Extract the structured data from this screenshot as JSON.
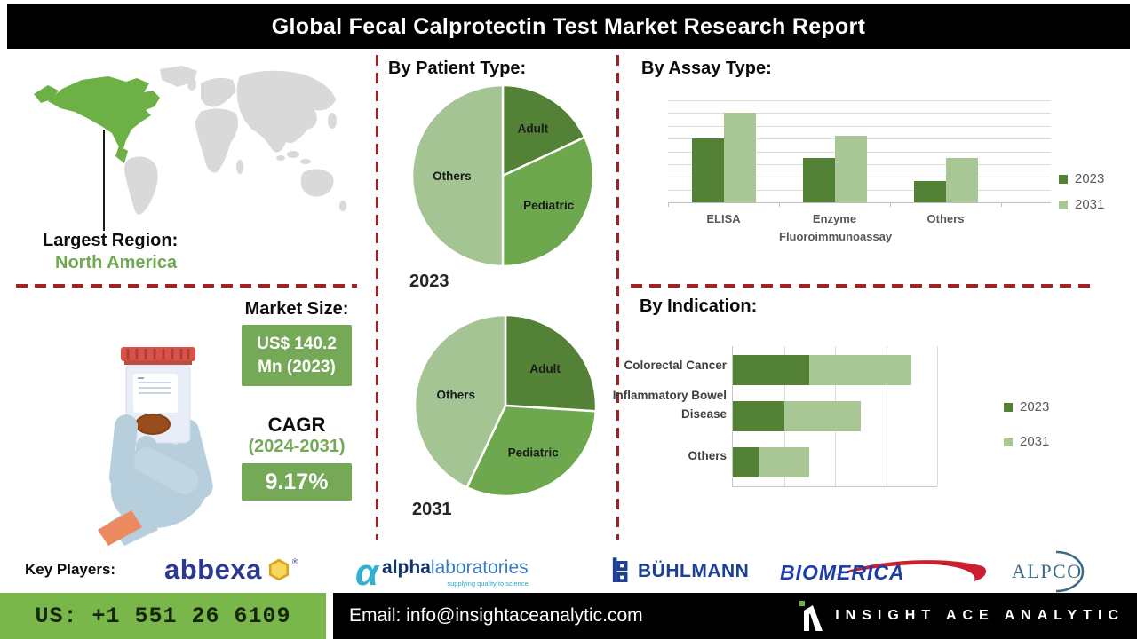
{
  "title": "Global Fecal Calprotectin Test Market Research Report",
  "colors": {
    "dark_green": "#538135",
    "mid_green": "#6da84e",
    "light_green": "#a4c494",
    "box_green": "#75a857",
    "footer_green": "#7ab74a",
    "dash_red": "#a32121",
    "map_green": "#6db045",
    "map_gray": "#d9d9d9"
  },
  "left": {
    "region_label": "Largest Region:",
    "region_value": "North America",
    "market_size_label": "Market Size:",
    "market_size_line1": "US$ 140.2",
    "market_size_line2": "Mn (2023)",
    "cagr_label": "CAGR",
    "cagr_period": "(2024-2031)",
    "cagr_value": "9.17%"
  },
  "chart_data": [
    {
      "id": "patient-type-2023",
      "type": "pie",
      "title": "By Patient Type:",
      "year_label": "2023",
      "labels": [
        "Adult",
        "Pediatric",
        "Others"
      ],
      "values": [
        18,
        32,
        50
      ],
      "colors": [
        "#538135",
        "#6da84e",
        "#a4c494"
      ],
      "label_r": [
        0.62,
        0.6,
        0.56
      ]
    },
    {
      "id": "patient-type-2031",
      "type": "pie",
      "title": "By Patient Type:",
      "year_label": "2031",
      "labels": [
        "Adult",
        "Pediatric",
        "Others"
      ],
      "values": [
        26,
        31,
        43
      ],
      "colors": [
        "#538135",
        "#6da84e",
        "#a4c494"
      ],
      "label_r": [
        0.6,
        0.6,
        0.56
      ]
    },
    {
      "id": "assay-type",
      "type": "bar",
      "title": "By Assay Type:",
      "categories": [
        "ELISA",
        "Enzyme Fluoroimmunoassay",
        "Others"
      ],
      "series": [
        {
          "name": "2023",
          "color": "#538135",
          "values": [
            50,
            35,
            17
          ]
        },
        {
          "name": "2031",
          "color": "#a9c795",
          "values": [
            70,
            52,
            35
          ]
        }
      ],
      "ylim": [
        0,
        80
      ],
      "grid_step": 10,
      "grid": true,
      "legend_position": "right"
    },
    {
      "id": "indication",
      "type": "stacked-bar-horizontal",
      "title": "By Indication:",
      "categories": [
        "Colorectal Cancer",
        "Inflammatory Bowel Disease",
        "Others"
      ],
      "series": [
        {
          "name": "2023",
          "color": "#538135",
          "values": [
            30,
            20,
            10
          ]
        },
        {
          "name": "2031",
          "color": "#a9c795",
          "values": [
            40,
            30,
            20
          ]
        }
      ],
      "xlim": [
        0,
        80
      ],
      "grid_step": 20,
      "grid": true,
      "legend_position": "right"
    }
  ],
  "key_players": {
    "label": "Key Players:",
    "abbexa": "abbexa",
    "abbexa_reg": "®",
    "alpha_bold": "alpha",
    "alpha_light": "laboratories",
    "alpha_tagline": "supplying quality to science",
    "buhlmann": "BÜHLMANN",
    "biomerica": "BIOMERICA",
    "alpco": "ALPCO"
  },
  "footer": {
    "phone": "US: +1 551 26 6109",
    "email": "Email: info@insightaceanalytic.com",
    "brand": "INSIGHT ACE ANALYTIC"
  }
}
